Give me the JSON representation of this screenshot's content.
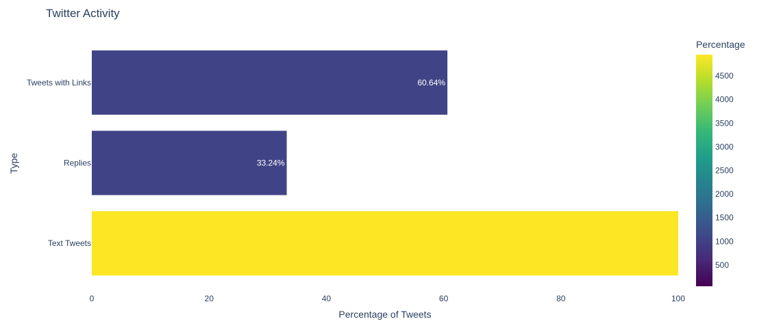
{
  "chart_data": {
    "type": "bar",
    "orientation": "horizontal",
    "title": "Twitter Activity",
    "xlabel": "Percentage of Tweets",
    "ylabel": "Type",
    "xlim": [
      0,
      100
    ],
    "x_ticks": [
      0,
      20,
      40,
      60,
      80,
      100
    ],
    "categories": [
      "Tweets with Links",
      "Replies",
      "Text Tweets"
    ],
    "values": [
      60.64,
      33.24,
      100
    ],
    "data_labels": [
      "60.64%",
      "33.24%",
      ""
    ],
    "color_values": [
      1050,
      1050,
      4950
    ],
    "colorscale": "viridis",
    "grid": false,
    "colorbar": {
      "title": "Percentage",
      "range": [
        50,
        4950
      ],
      "ticks": [
        500,
        1000,
        1500,
        2000,
        2500,
        3000,
        3500,
        4000,
        4500
      ],
      "placement": "right"
    }
  }
}
